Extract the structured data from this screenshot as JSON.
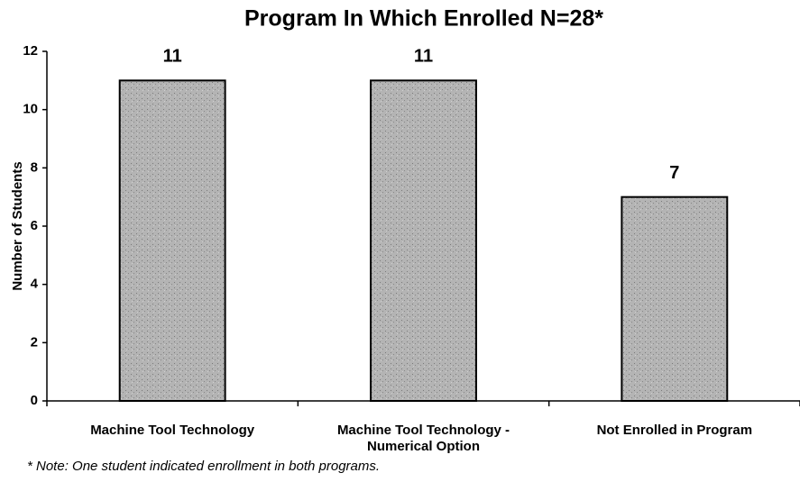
{
  "chart_data": {
    "type": "bar",
    "title": "Program In Which Enrolled  N=28*",
    "y_label": "Number of Students",
    "categories": [
      "Machine Tool Technology",
      "Machine Tool Technology -\nNumerical Option",
      "Not Enrolled in Program"
    ],
    "values": [
      11,
      11,
      7
    ],
    "color": "#ababab",
    "ylim": [
      0,
      12
    ],
    "yticks": [
      0,
      2,
      4,
      6,
      8,
      10,
      12
    ],
    "grid": false,
    "note": "*  Note:  One student indicated enrollment in both programs."
  }
}
